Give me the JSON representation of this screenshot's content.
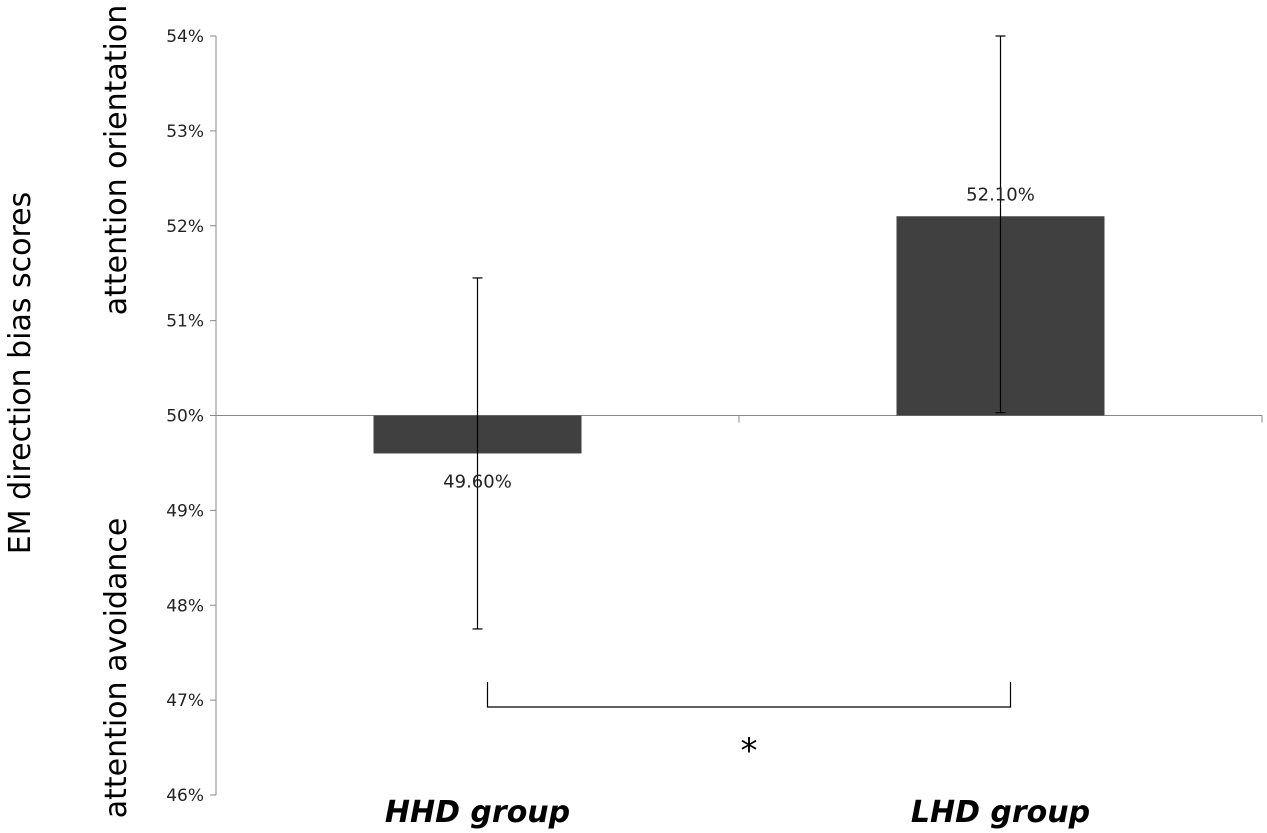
{
  "chart_data": {
    "type": "bar",
    "categories": [
      "HHD group",
      "LHD group"
    ],
    "values": [
      49.6,
      52.1
    ],
    "data_labels": [
      "49.60%",
      "52.10%"
    ],
    "error_bars": [
      {
        "low": 47.75,
        "high": 51.45
      },
      {
        "low": 50.03,
        "high": 54.0
      }
    ],
    "baseline": 50,
    "ylim": [
      46,
      54
    ],
    "yticks": [
      46,
      47,
      48,
      49,
      50,
      51,
      52,
      53,
      54
    ],
    "ytick_labels": [
      "46%",
      "47%",
      "48%",
      "49%",
      "50%",
      "51%",
      "52%",
      "53%",
      "54%"
    ],
    "ylabel": "EM direction bias scores",
    "ylabel_upper": "attention orientation",
    "ylabel_lower": "attention avoidance",
    "xlabel": "",
    "title": "",
    "significance_marker": "*",
    "bar_color": "#404040",
    "legend": "none",
    "grid": false
  }
}
